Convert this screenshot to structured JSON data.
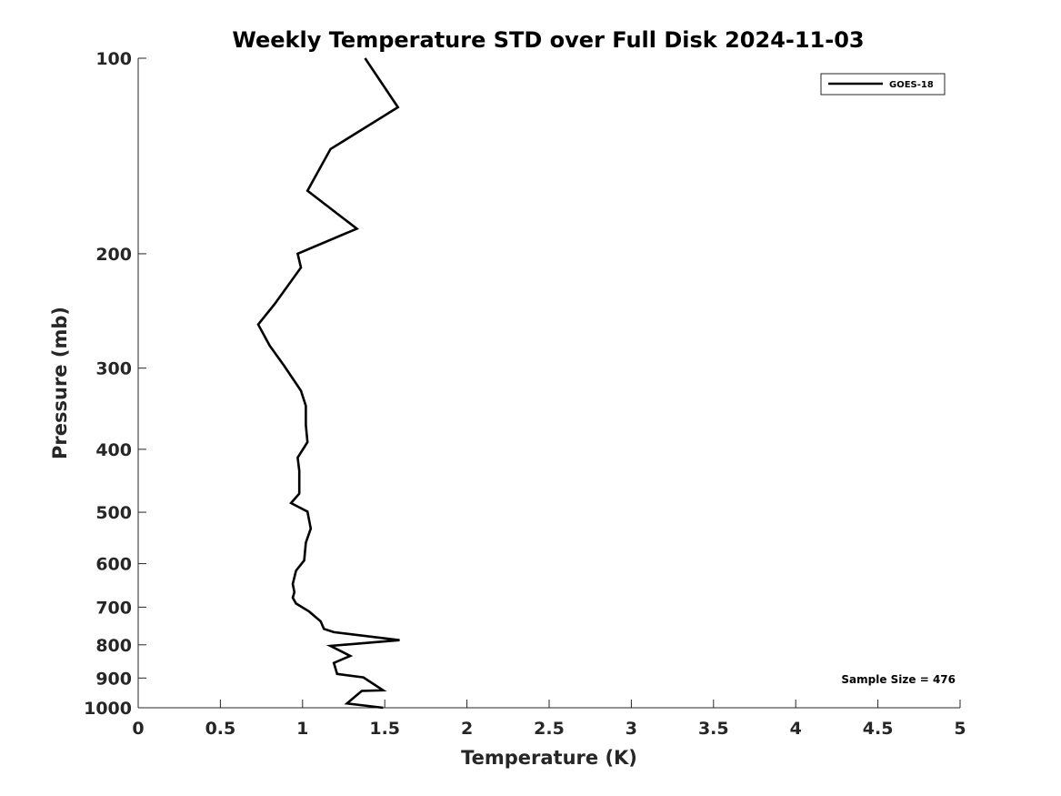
{
  "chart_data": {
    "type": "line",
    "title": "Weekly Temperature STD over Full Disk 2024-11-03",
    "xlabel": "Temperature (K)",
    "ylabel": "Pressure (mb)",
    "xlim": [
      0,
      5
    ],
    "ylim": [
      100,
      1000
    ],
    "yscale": "log",
    "yreversed": true,
    "x_ticks": [
      0,
      0.5,
      1,
      1.5,
      2,
      2.5,
      3,
      3.5,
      4,
      4.5,
      5
    ],
    "x_tick_labels": [
      "0",
      "0.5",
      "1",
      "1.5",
      "2",
      "2.5",
      "3",
      "3.5",
      "4",
      "4.5",
      "5"
    ],
    "y_ticks": [
      100,
      200,
      300,
      400,
      500,
      600,
      700,
      800,
      900,
      1000
    ],
    "y_tick_labels": [
      "100",
      "200",
      "300",
      "400",
      "500",
      "600",
      "700",
      "800",
      "900",
      "1000"
    ],
    "grid": false,
    "legend": {
      "position": "top-right",
      "entries": [
        "GOES-18"
      ]
    },
    "annotations": [
      {
        "text": "Sample Size = 476",
        "position": "bottom-right"
      }
    ],
    "series": [
      {
        "name": "GOES-18",
        "color": "#000000",
        "x": [
          1.38,
          1.58,
          1.17,
          1.03,
          1.33,
          0.97,
          0.99,
          0.83,
          0.73,
          0.8,
          0.89,
          0.99,
          1.02,
          1.02,
          1.03,
          0.97,
          0.98,
          0.98,
          0.93,
          1.03,
          1.05,
          1.02,
          1.01,
          0.96,
          0.94,
          0.95,
          0.94,
          0.96,
          1.04,
          1.11,
          1.13,
          1.19,
          1.59,
          1.17,
          1.29,
          1.19,
          1.21,
          1.37,
          1.49,
          1.36,
          1.27,
          1.49
        ],
        "y": [
          100,
          119,
          138,
          160,
          183,
          200,
          210,
          239,
          257,
          277,
          298,
          325,
          343,
          367,
          390,
          412,
          432,
          468,
          484,
          499,
          530,
          557,
          593,
          615,
          645,
          664,
          677,
          691,
          711,
          736,
          756,
          765,
          787,
          803,
          832,
          853,
          887,
          898,
          940,
          942,
          985,
          1000
        ]
      }
    ]
  }
}
